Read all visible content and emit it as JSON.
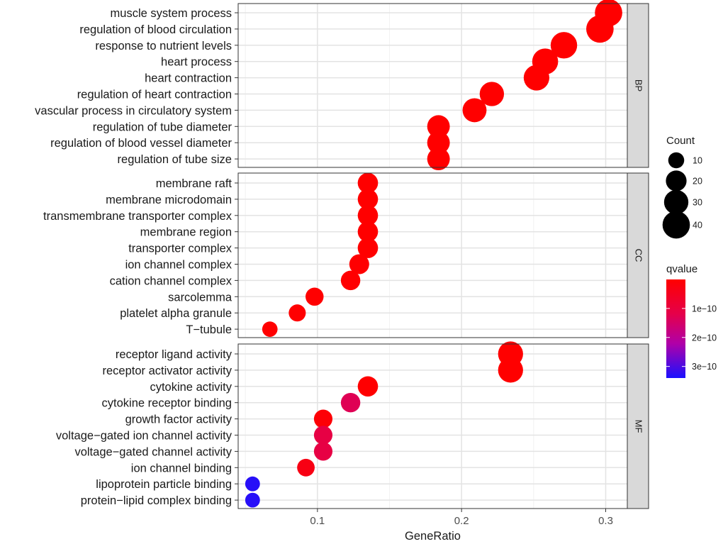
{
  "chart_data": {
    "type": "scatter",
    "xlabel": "GeneRatio",
    "xlim": [
      0.045,
      0.315
    ],
    "xticks": [
      {
        "value": 0.1,
        "label": "0.1"
      },
      {
        "value": 0.2,
        "label": "0.2"
      },
      {
        "value": 0.3,
        "label": "0.3"
      }
    ],
    "grid": true,
    "legend_placement": "right",
    "size_legend": {
      "title": "Count",
      "entries": [
        {
          "value": 10,
          "label": "10"
        },
        {
          "value": 20,
          "label": "20"
        },
        {
          "value": 30,
          "label": "30"
        },
        {
          "value": 40,
          "label": "40"
        }
      ]
    },
    "color_legend": {
      "title": "qvalue",
      "low_color": "#FF0000",
      "high_color": "#0000FF",
      "range": [
        0,
        3.4e-10
      ],
      "ticks": [
        {
          "value": 1e-10,
          "label": "1e−10"
        },
        {
          "value": 2e-10,
          "label": "2e−10"
        },
        {
          "value": 3e-10,
          "label": "3e−10"
        }
      ]
    },
    "panels": [
      {
        "name": "BP",
        "terms": [
          {
            "label": "muscle system process",
            "x": 0.302,
            "count": 40,
            "qvalue": 1e-20
          },
          {
            "label": "regulation of blood circulation",
            "x": 0.296,
            "count": 40,
            "qvalue": 1e-20
          },
          {
            "label": "response to nutrient levels",
            "x": 0.271,
            "count": 37,
            "qvalue": 1e-18
          },
          {
            "label": "heart process",
            "x": 0.258,
            "count": 35,
            "qvalue": 1e-17
          },
          {
            "label": "heart contraction",
            "x": 0.252,
            "count": 34,
            "qvalue": 1e-17
          },
          {
            "label": "regulation of heart contraction",
            "x": 0.221,
            "count": 30,
            "qvalue": 1e-15
          },
          {
            "label": "vascular process in circulatory system",
            "x": 0.209,
            "count": 29,
            "qvalue": 1e-15
          },
          {
            "label": "regulation of tube diameter",
            "x": 0.184,
            "count": 25,
            "qvalue": 1e-13
          },
          {
            "label": "regulation of blood vessel diameter",
            "x": 0.184,
            "count": 25,
            "qvalue": 1e-13
          },
          {
            "label": "regulation of tube size",
            "x": 0.184,
            "count": 25,
            "qvalue": 1e-13
          }
        ]
      },
      {
        "name": "CC",
        "terms": [
          {
            "label": "membrane raft",
            "x": 0.135,
            "count": 19,
            "qvalue": 1e-13
          },
          {
            "label": "membrane microdomain",
            "x": 0.135,
            "count": 19,
            "qvalue": 1e-13
          },
          {
            "label": "transmembrane transporter complex",
            "x": 0.135,
            "count": 19,
            "qvalue": 1e-13
          },
          {
            "label": "membrane region",
            "x": 0.135,
            "count": 19,
            "qvalue": 1e-13
          },
          {
            "label": "transporter complex",
            "x": 0.135,
            "count": 19,
            "qvalue": 1e-13
          },
          {
            "label": "ion channel complex",
            "x": 0.129,
            "count": 18,
            "qvalue": 1e-12
          },
          {
            "label": "cation channel complex",
            "x": 0.123,
            "count": 17,
            "qvalue": 1e-12
          },
          {
            "label": "sarcolemma",
            "x": 0.098,
            "count": 14,
            "qvalue": 1e-12
          },
          {
            "label": "platelet alpha granule",
            "x": 0.086,
            "count": 12,
            "qvalue": 1e-12
          },
          {
            "label": "T−tubule",
            "x": 0.067,
            "count": 9,
            "qvalue": 1e-12
          }
        ]
      },
      {
        "name": "MF",
        "terms": [
          {
            "label": "receptor ligand activity",
            "x": 0.234,
            "count": 32,
            "qvalue": 1e-14
          },
          {
            "label": "receptor activator activity",
            "x": 0.234,
            "count": 32,
            "qvalue": 1e-14
          },
          {
            "label": "cytokine activity",
            "x": 0.135,
            "count": 19,
            "qvalue": 2e-12
          },
          {
            "label": "cytokine receptor binding",
            "x": 0.123,
            "count": 17,
            "qvalue": 1.3e-10
          },
          {
            "label": "growth factor activity",
            "x": 0.104,
            "count": 15,
            "qvalue": 1e-11
          },
          {
            "label": "voltage−gated ion channel activity",
            "x": 0.104,
            "count": 15,
            "qvalue": 1.1e-10
          },
          {
            "label": "voltage−gated channel activity",
            "x": 0.104,
            "count": 15,
            "qvalue": 1.1e-10
          },
          {
            "label": "ion channel binding",
            "x": 0.092,
            "count": 13,
            "qvalue": 3e-11
          },
          {
            "label": "lipoprotein particle binding",
            "x": 0.055,
            "count": 8,
            "qvalue": 3.3e-10
          },
          {
            "label": "protein−lipid complex binding",
            "x": 0.055,
            "count": 8,
            "qvalue": 3.3e-10
          }
        ]
      }
    ]
  }
}
